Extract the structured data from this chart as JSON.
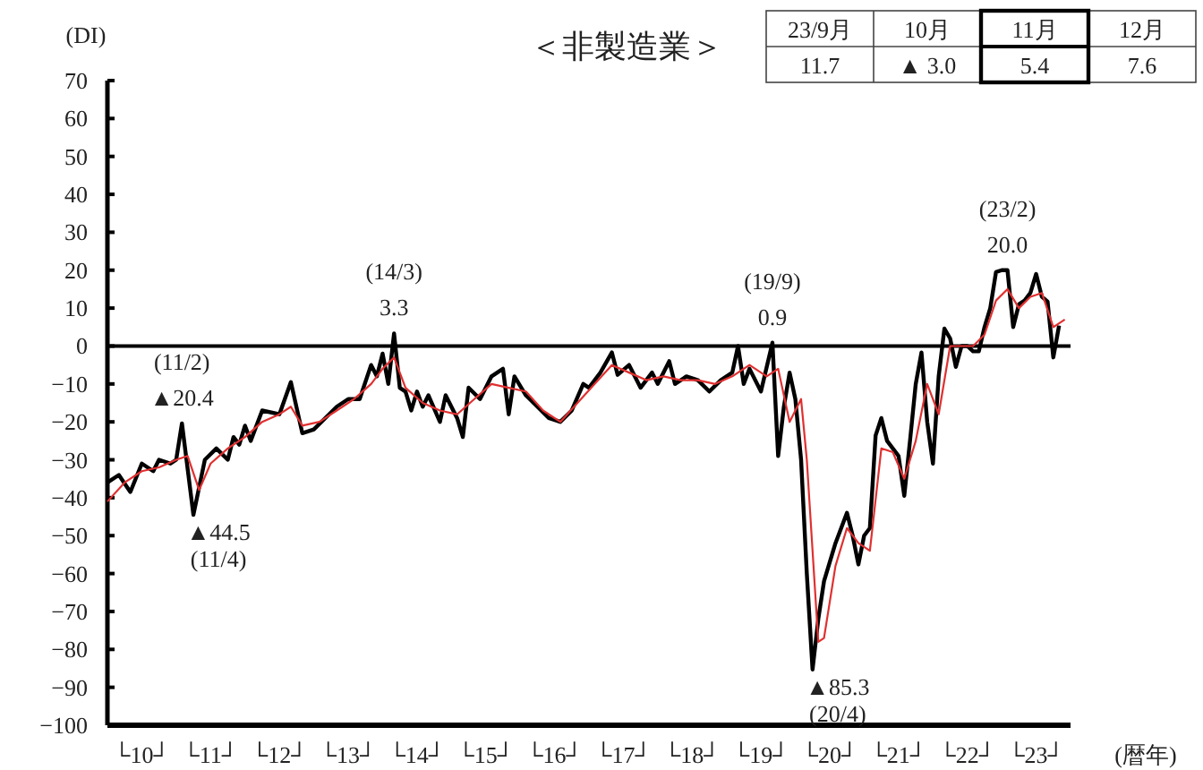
{
  "chart_data": {
    "type": "line",
    "title": "＜非製造業＞",
    "ylabel": "(DI)",
    "xlabel": "(暦年)",
    "xlim": [
      "2010-01",
      "2024-01"
    ],
    "ylim": [
      -100,
      70
    ],
    "yticks": [
      -100,
      -90,
      -80,
      -70,
      -60,
      -50,
      -40,
      -30,
      -20,
      -10,
      0,
      10,
      20,
      30,
      40,
      50,
      60,
      70
    ],
    "xticks": [
      {
        "value": "2010-07",
        "label": "└10┘"
      },
      {
        "value": "2011-07",
        "label": "└11┘"
      },
      {
        "value": "2012-07",
        "label": "└12┘"
      },
      {
        "value": "2013-07",
        "label": "└13┘"
      },
      {
        "value": "2014-07",
        "label": "└14┘"
      },
      {
        "value": "2015-07",
        "label": "└15┘"
      },
      {
        "value": "2016-07",
        "label": "└16┘"
      },
      {
        "value": "2017-07",
        "label": "└17┘"
      },
      {
        "value": "2018-07",
        "label": "└18┘"
      },
      {
        "value": "2019-07",
        "label": "└19┘"
      },
      {
        "value": "2020-07",
        "label": "└20┘"
      },
      {
        "value": "2021-07",
        "label": "└21┘"
      },
      {
        "value": "2022-07",
        "label": "└22┘"
      },
      {
        "value": "2023-07",
        "label": "└23┘"
      }
    ],
    "ref_lines": [
      {
        "axis": "y",
        "value": 0,
        "color": "#000000"
      }
    ],
    "series": [
      {
        "color": "#000000",
        "x": [
          "2010-01",
          "2010-03",
          "2010-05",
          "2010-07",
          "2010-09",
          "2010-10",
          "2010-12",
          "2011-01",
          "2011-02",
          "2011-04",
          "2011-06",
          "2011-08",
          "2011-10",
          "2011-11",
          "2011-12",
          "2012-01",
          "2012-02",
          "2012-04",
          "2012-07",
          "2012-09",
          "2012-11",
          "2013-01",
          "2013-03",
          "2013-05",
          "2013-07",
          "2013-09",
          "2013-11",
          "2013-12",
          "2014-01",
          "2014-02",
          "2014-03",
          "2014-04",
          "2014-05",
          "2014-06",
          "2014-07",
          "2014-08",
          "2014-09",
          "2014-11",
          "2014-12",
          "2015-01",
          "2015-02",
          "2015-03",
          "2015-04",
          "2015-06",
          "2015-08",
          "2015-10",
          "2015-11",
          "2015-12",
          "2016-02",
          "2016-04",
          "2016-06",
          "2016-08",
          "2016-10",
          "2016-12",
          "2017-01",
          "2017-03",
          "2017-05",
          "2017-06",
          "2017-08",
          "2017-10",
          "2017-12",
          "2018-01",
          "2018-03",
          "2018-04",
          "2018-06",
          "2018-08",
          "2018-10",
          "2018-12",
          "2019-02",
          "2019-03",
          "2019-04",
          "2019-05",
          "2019-07",
          "2019-09",
          "2019-10",
          "2019-11",
          "2019-12",
          "2020-01",
          "2020-02",
          "2020-03",
          "2020-04",
          "2020-05",
          "2020-06",
          "2020-07",
          "2020-08",
          "2020-09",
          "2020-10",
          "2020-11",
          "2020-12",
          "2021-01",
          "2021-02",
          "2021-03",
          "2021-04",
          "2021-05",
          "2021-06",
          "2021-07",
          "2021-08",
          "2021-09",
          "2021-10",
          "2021-11",
          "2021-12",
          "2022-01",
          "2022-02",
          "2022-03",
          "2022-04",
          "2022-05",
          "2022-06",
          "2022-07",
          "2022-08",
          "2022-09",
          "2022-10",
          "2022-11",
          "2022-12",
          "2023-01",
          "2023-02",
          "2023-03",
          "2023-04",
          "2023-05",
          "2023-06",
          "2023-07",
          "2023-08",
          "2023-09",
          "2023-10",
          "2023-11"
        ],
        "values": [
          -36,
          -34,
          -38.5,
          -31,
          -33,
          -30,
          -31,
          -30,
          -20.4,
          -44.5,
          -30,
          -27,
          -30,
          -24,
          -26,
          -21,
          -25,
          -17,
          -18,
          -9.5,
          -23,
          -22,
          -19,
          -16,
          -14,
          -14,
          -5,
          -8,
          -2,
          -10,
          3.3,
          -11,
          -12,
          -17,
          -12,
          -16,
          -13,
          -20,
          -13,
          -16,
          -19,
          -24,
          -11,
          -14,
          -8,
          -6,
          -18,
          -8,
          -13,
          -16,
          -19,
          -20,
          -17,
          -10,
          -11,
          -7,
          -1.7,
          -7.6,
          -5,
          -11,
          -7,
          -10,
          -4,
          -10,
          -8,
          -9,
          -12,
          -9,
          -7,
          0,
          -10,
          -6,
          -12,
          0.9,
          -29,
          -16,
          -7,
          -14,
          -30,
          -60,
          -85.3,
          -72,
          -62,
          -57,
          -52,
          -48,
          -44,
          -50,
          -57.6,
          -50,
          -48,
          -23.6,
          -19,
          -25,
          -27,
          -29,
          -39.5,
          -25,
          -10,
          -1.7,
          -20,
          -31,
          -8,
          4.6,
          2,
          -5.5,
          0,
          0,
          -1.4,
          -1.4,
          5,
          10,
          19.5,
          20,
          20.0,
          5,
          11,
          12,
          14,
          19,
          13,
          11.7,
          -3.0,
          5.4
        ]
      },
      {
        "color": "#e03030",
        "x": [
          "2010-01",
          "2010-04",
          "2010-07",
          "2010-10",
          "2011-01",
          "2011-03",
          "2011-05",
          "2011-07",
          "2011-10",
          "2012-01",
          "2012-04",
          "2012-07",
          "2012-09",
          "2012-11",
          "2013-02",
          "2013-05",
          "2013-08",
          "2013-11",
          "2014-01",
          "2014-03",
          "2014-05",
          "2014-08",
          "2014-11",
          "2015-02",
          "2015-05",
          "2015-08",
          "2015-11",
          "2016-02",
          "2016-05",
          "2016-08",
          "2016-11",
          "2017-02",
          "2017-05",
          "2017-08",
          "2017-11",
          "2018-02",
          "2018-05",
          "2018-08",
          "2018-11",
          "2019-02",
          "2019-05",
          "2019-08",
          "2019-10",
          "2019-12",
          "2020-02",
          "2020-03",
          "2020-05",
          "2020-06",
          "2020-08",
          "2020-10",
          "2020-12",
          "2021-02",
          "2021-04",
          "2021-06",
          "2021-08",
          "2021-10",
          "2021-12",
          "2022-02",
          "2022-04",
          "2022-06",
          "2022-08",
          "2022-10",
          "2022-12",
          "2023-02",
          "2023-04",
          "2023-06",
          "2023-08",
          "2023-10",
          "2023-12"
        ],
        "values": [
          -41,
          -36,
          -33,
          -32,
          -30,
          -29,
          -38,
          -31,
          -27,
          -24,
          -20,
          -18,
          -16,
          -21,
          -20,
          -17,
          -14,
          -10,
          -6,
          -3,
          -11,
          -15,
          -17,
          -18,
          -14,
          -10,
          -11,
          -12,
          -17,
          -20,
          -15,
          -10,
          -5,
          -7,
          -9,
          -8,
          -9,
          -9,
          -10,
          -8,
          -5,
          -8,
          -6,
          -20,
          -14,
          -30,
          -78,
          -77,
          -58,
          -48,
          -52,
          -54,
          -27,
          -28,
          -35,
          -25,
          -10,
          -18,
          0,
          0,
          0,
          3,
          12,
          15,
          10,
          13,
          14,
          5,
          7
        ]
      }
    ],
    "annotations": [
      "23/9月",
      "10月",
      "11月",
      "12月",
      "11.7",
      "▲ 3.0",
      "5.4",
      "7.6",
      {
        "text": "(11/2)",
        "x": "2011-02",
        "y": -20.4
      },
      {
        "text": "▲20.4",
        "x": "2011-02",
        "y": -20.4
      },
      {
        "text": "▲44.5",
        "x": "2011-04",
        "y": -44.5
      },
      {
        "text": "(11/4)",
        "x": "2011-04",
        "y": -44.5
      },
      {
        "text": "(14/3)",
        "x": "2014-03",
        "y": 3.3
      },
      {
        "text": "3.3",
        "x": "2014-03",
        "y": 3.3
      },
      {
        "text": "(19/9)",
        "x": "2019-09",
        "y": 0.9
      },
      {
        "text": "0.9",
        "x": "2019-09",
        "y": 0.9
      },
      {
        "text": "▲85.3",
        "x": "2020-04",
        "y": -85.3
      },
      {
        "text": "(20/4)",
        "x": "2020-04",
        "y": -85.3
      },
      {
        "text": "(23/2)",
        "x": "2023-02",
        "y": 20.0
      },
      {
        "text": "20.0",
        "x": "2023-02",
        "y": 20.0
      }
    ]
  }
}
